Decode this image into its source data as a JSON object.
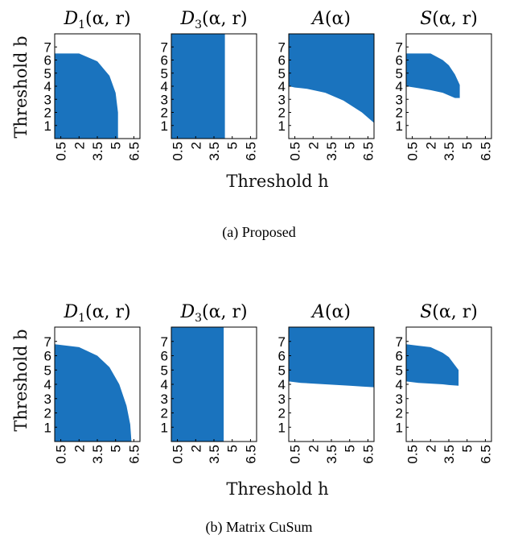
{
  "fill_color": "#1a73be",
  "figures": [
    {
      "caption": "(a) Proposed",
      "ylabel": "Threshold b",
      "xlabel": "Threshold h"
    },
    {
      "caption": "(b) Matrix CuSum",
      "ylabel": "Threshold b",
      "xlabel": "Threshold h"
    }
  ],
  "chart_data": [
    {
      "type": "area",
      "title": "D1(α, r)",
      "group": "(a) Proposed",
      "xlim": [
        0,
        7
      ],
      "ylim": [
        0,
        8
      ],
      "xticks": [
        "0.5",
        "2",
        "3.5",
        "5",
        "6.5"
      ],
      "yticks": [
        "1",
        "2",
        "3",
        "4",
        "5",
        "6",
        "7"
      ],
      "region": {
        "x": [
          0,
          2,
          3.5,
          4.5,
          5,
          5.2,
          5.2
        ],
        "b_min": [
          0,
          0,
          0,
          0,
          0,
          0,
          0
        ],
        "b_max": [
          6.5,
          6.5,
          5.9,
          4.8,
          3.5,
          2.0,
          0
        ]
      }
    },
    {
      "type": "area",
      "title": "D3(α, r)",
      "group": "(a) Proposed",
      "xlim": [
        0,
        7
      ],
      "ylim": [
        0,
        8
      ],
      "xticks": [
        "0.5",
        "2",
        "3.5",
        "5",
        "6.5"
      ],
      "yticks": [
        "1",
        "2",
        "3",
        "4",
        "5",
        "6",
        "7"
      ],
      "region": {
        "x": [
          0,
          4.4
        ],
        "b_min": [
          0,
          0
        ],
        "b_max": [
          8,
          8
        ]
      }
    },
    {
      "type": "area",
      "title": "A(α)",
      "group": "(a) Proposed",
      "xlim": [
        0,
        7
      ],
      "ylim": [
        0,
        8
      ],
      "xticks": [
        "0.5",
        "2",
        "3.5",
        "5",
        "6.5"
      ],
      "yticks": [
        "1",
        "2",
        "3",
        "4",
        "5",
        "6",
        "7"
      ],
      "region": {
        "x": [
          0,
          0.5,
          1,
          1.5,
          2,
          2.5,
          3,
          3.5,
          4,
          4.5,
          5,
          5.5,
          6,
          6.5,
          7
        ],
        "b_min": [
          4.0,
          3.9,
          3.85,
          3.8,
          3.7,
          3.6,
          3.5,
          3.3,
          3.1,
          2.9,
          2.6,
          2.3,
          2.0,
          1.6,
          1.2
        ],
        "b_max": [
          8,
          8,
          8,
          8,
          8,
          8,
          8,
          8,
          8,
          8,
          8,
          8,
          8,
          8,
          8
        ]
      }
    },
    {
      "type": "area",
      "title": "S(α, r)",
      "group": "(a) Proposed",
      "xlim": [
        0,
        7
      ],
      "ylim": [
        0,
        8
      ],
      "xticks": [
        "0.5",
        "2",
        "3.5",
        "5",
        "6.5"
      ],
      "yticks": [
        "1",
        "2",
        "3",
        "4",
        "5",
        "6",
        "7"
      ],
      "region": {
        "x": [
          0,
          1,
          2,
          3,
          3.5,
          4,
          4.4
        ],
        "b_min": [
          4.0,
          3.85,
          3.7,
          3.5,
          3.3,
          3.1,
          3.1
        ],
        "b_max": [
          6.5,
          6.5,
          6.5,
          6.0,
          5.6,
          4.9,
          4.1
        ]
      }
    },
    {
      "type": "area",
      "title": "D1(α, r)",
      "group": "(b) Matrix CuSum",
      "xlim": [
        0,
        7
      ],
      "ylim": [
        0,
        8
      ],
      "xticks": [
        "0.5",
        "2",
        "3.5",
        "5",
        "6.5"
      ],
      "yticks": [
        "1",
        "2",
        "3",
        "4",
        "5",
        "6",
        "7"
      ],
      "region": {
        "x": [
          0,
          2,
          3.5,
          4.5,
          5.3,
          5.9,
          6.2,
          6.3
        ],
        "b_min": [
          0,
          0,
          0,
          0,
          0,
          0,
          0,
          0
        ],
        "b_max": [
          6.8,
          6.6,
          6.0,
          5.2,
          4.0,
          2.5,
          1.2,
          0
        ]
      }
    },
    {
      "type": "area",
      "title": "D3(α, r)",
      "group": "(b) Matrix CuSum",
      "xlim": [
        0,
        7
      ],
      "ylim": [
        0,
        8
      ],
      "xticks": [
        "0.5",
        "2",
        "3.5",
        "5",
        "6.5"
      ],
      "yticks": [
        "1",
        "2",
        "3",
        "4",
        "5",
        "6",
        "7"
      ],
      "region": {
        "x": [
          0,
          4.3
        ],
        "b_min": [
          0,
          0
        ],
        "b_max": [
          8,
          8
        ]
      }
    },
    {
      "type": "area",
      "title": "A(α)",
      "group": "(b) Matrix CuSum",
      "xlim": [
        0,
        7
      ],
      "ylim": [
        0,
        8
      ],
      "xticks": [
        "0.5",
        "2",
        "3.5",
        "5",
        "6.5"
      ],
      "yticks": [
        "1",
        "2",
        "3",
        "4",
        "5",
        "6",
        "7"
      ],
      "region": {
        "x": [
          0,
          1,
          2,
          3,
          4,
          5,
          6,
          7
        ],
        "b_min": [
          4.2,
          4.1,
          4.05,
          4.0,
          3.95,
          3.9,
          3.85,
          3.8
        ],
        "b_max": [
          8,
          8,
          8,
          8,
          8,
          8,
          8,
          8
        ]
      }
    },
    {
      "type": "area",
      "title": "S(α, r)",
      "group": "(b) Matrix CuSum",
      "xlim": [
        0,
        7
      ],
      "ylim": [
        0,
        8
      ],
      "xticks": [
        "0.5",
        "2",
        "3.5",
        "5",
        "6.5"
      ],
      "yticks": [
        "1",
        "2",
        "3",
        "4",
        "5",
        "6",
        "7"
      ],
      "region": {
        "x": [
          0,
          1,
          2,
          3,
          3.5,
          4.3
        ],
        "b_min": [
          4.2,
          4.1,
          4.05,
          4.0,
          3.95,
          3.9
        ],
        "b_max": [
          6.8,
          6.7,
          6.6,
          6.2,
          5.9,
          5.0
        ]
      }
    }
  ]
}
